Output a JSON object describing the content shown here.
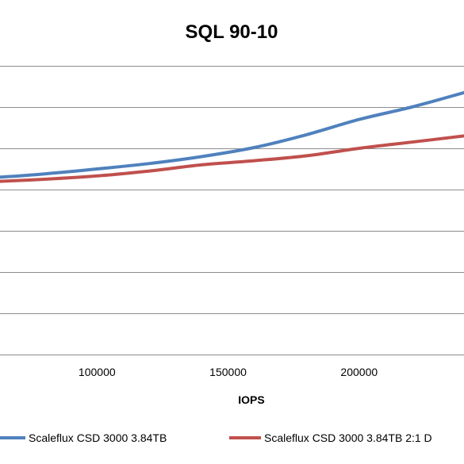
{
  "chart_data": {
    "type": "line",
    "title": "SQL 90-10",
    "xlabel": "IOPS",
    "ylabel": "",
    "x_ticks": [
      100000,
      150000,
      200000
    ],
    "xlim": [
      63000,
      240000
    ],
    "ylim": [
      0,
      7
    ],
    "y_gridlines": [
      0,
      1,
      2,
      3,
      4,
      5,
      6,
      7
    ],
    "grid": true,
    "legend_position": "bottom",
    "series": [
      {
        "name": "Scaleflux CSD 3000 3.84TB",
        "color": "#4f81bd",
        "x": [
          63000,
          80000,
          100000,
          120000,
          140000,
          160000,
          180000,
          200000,
          220000,
          240000
        ],
        "y": [
          4.3,
          4.38,
          4.5,
          4.63,
          4.8,
          5.02,
          5.33,
          5.7,
          6.0,
          6.35
        ]
      },
      {
        "name": "Scaleflux CSD 3000 3.84TB 2:1 D",
        "color": "#c0504d",
        "x": [
          63000,
          80000,
          100000,
          120000,
          140000,
          160000,
          180000,
          200000,
          220000,
          240000
        ],
        "y": [
          4.2,
          4.25,
          4.33,
          4.45,
          4.6,
          4.7,
          4.82,
          5.0,
          5.15,
          5.3
        ]
      }
    ]
  }
}
